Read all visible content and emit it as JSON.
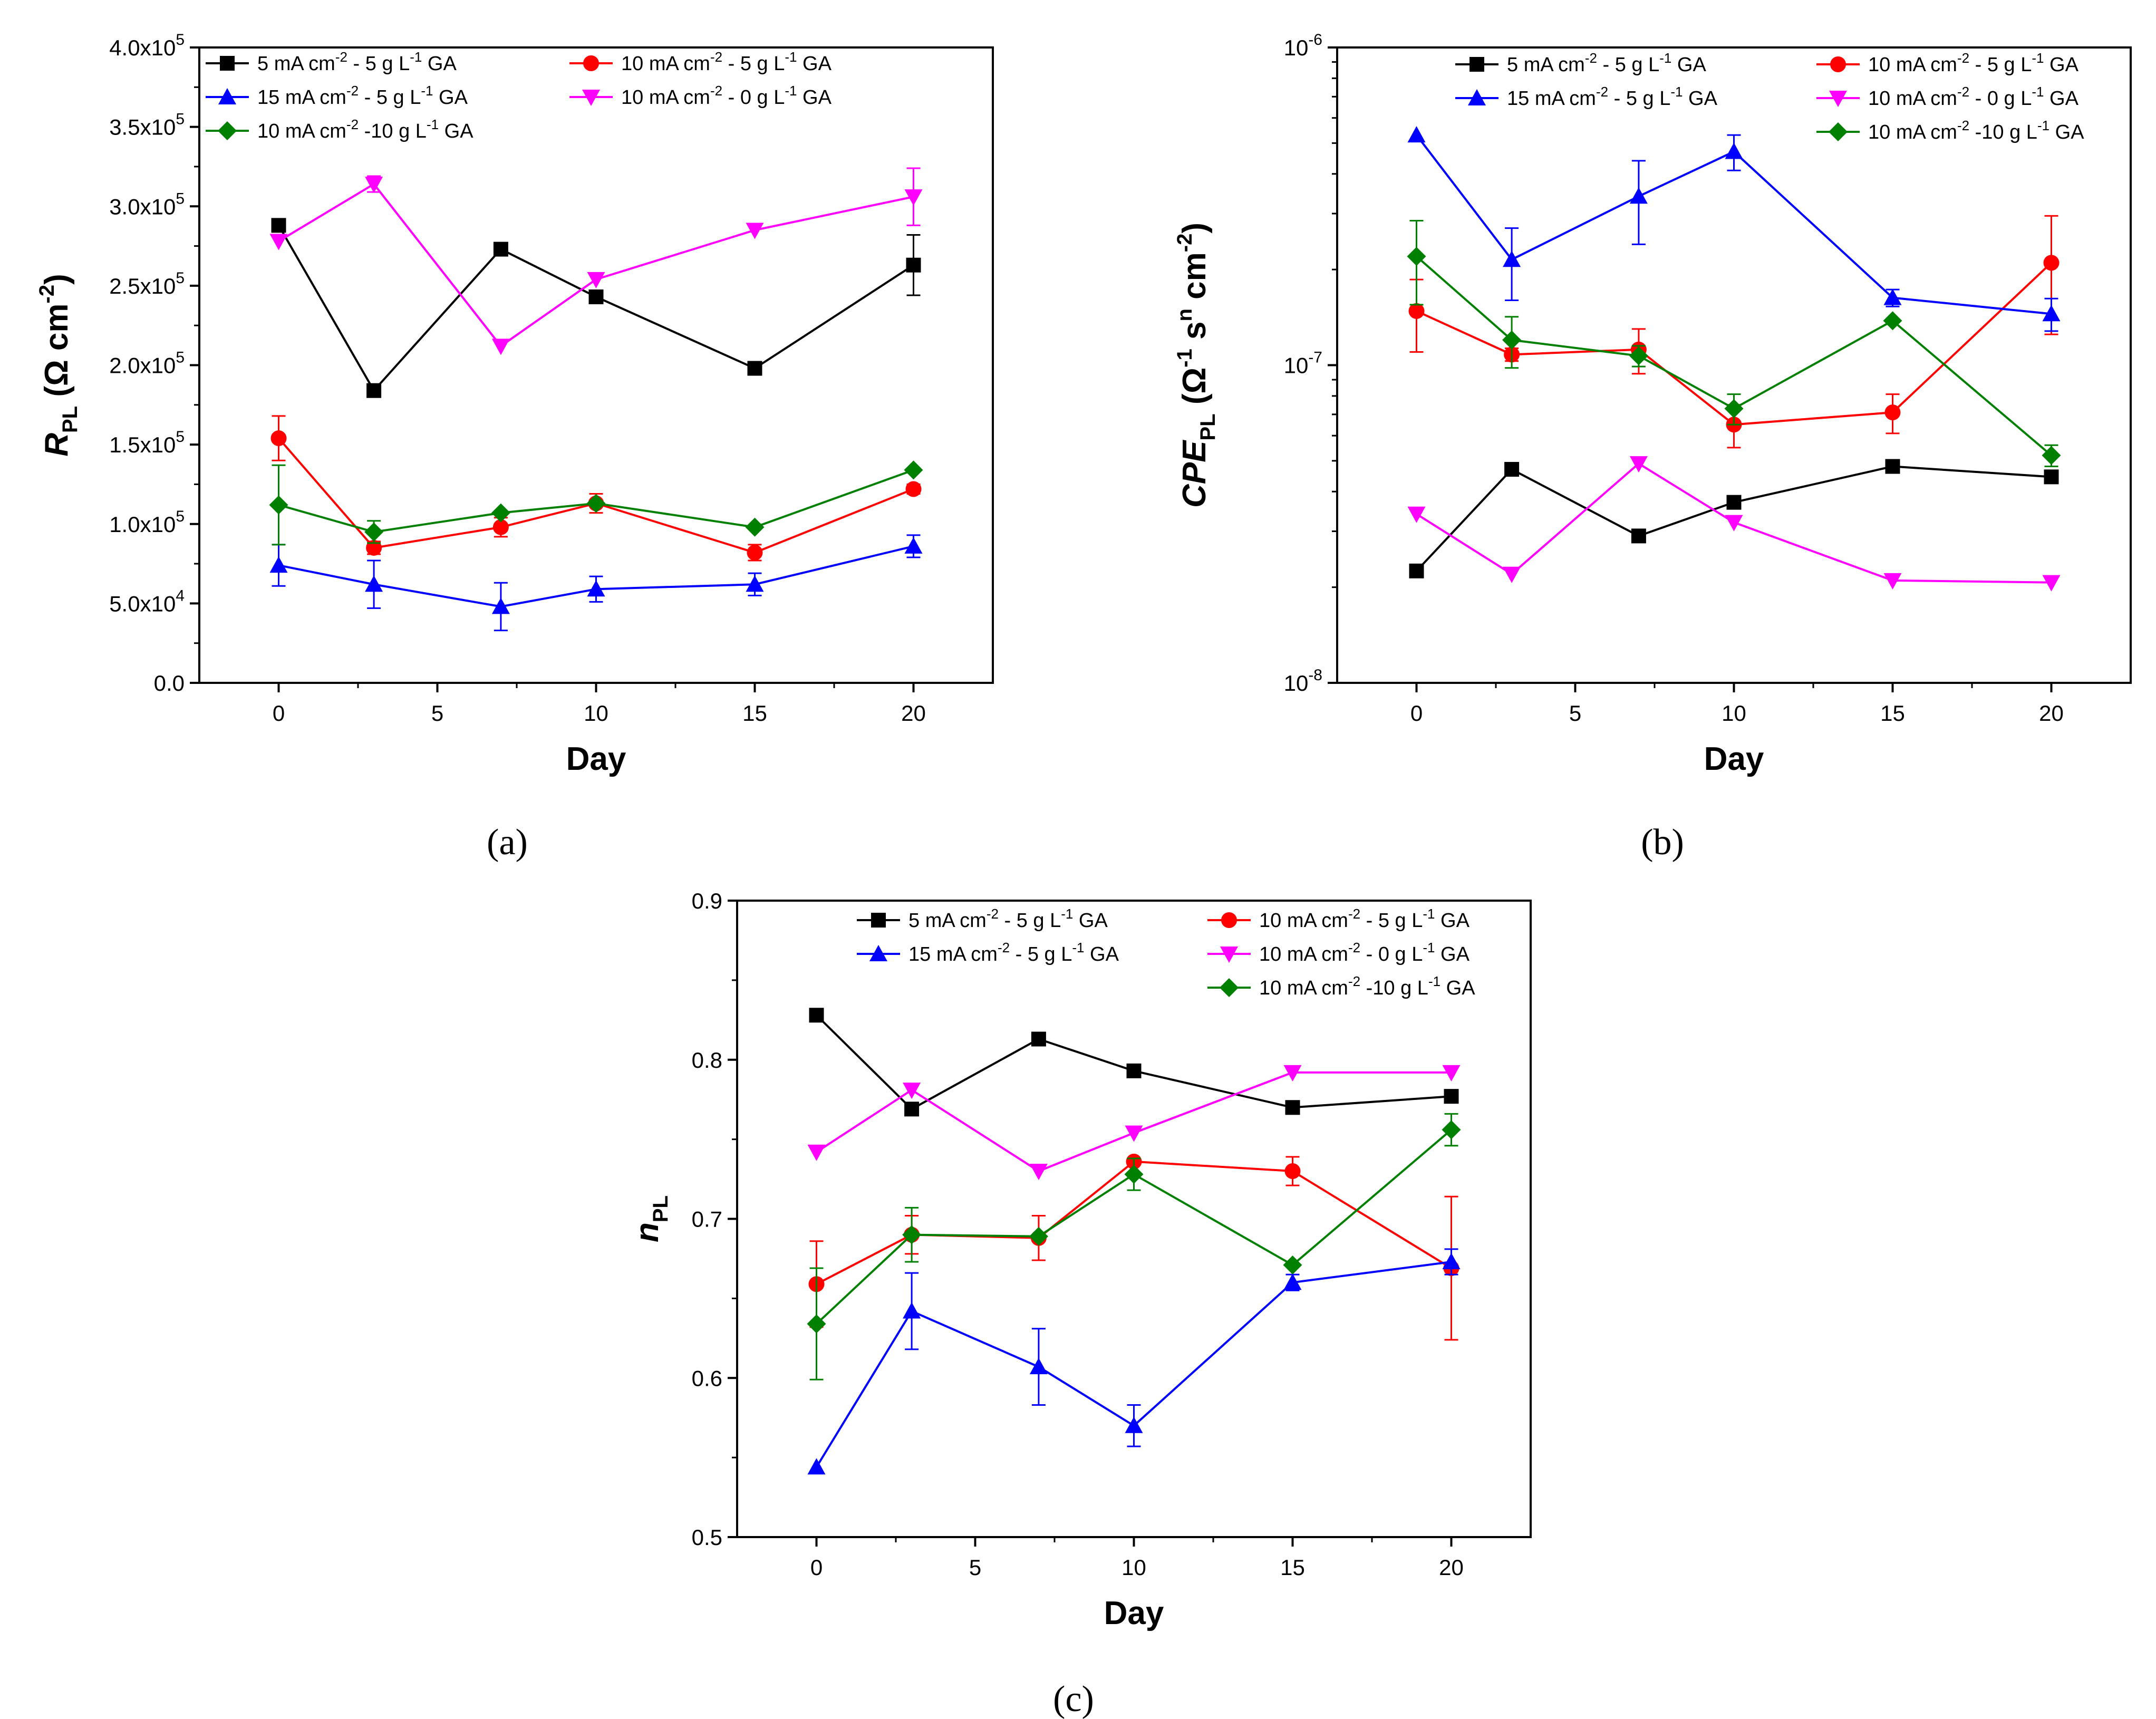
{
  "styles": {
    "series_colors": {
      "s5_5": "#000000",
      "s10_5": "#ff0000",
      "s15_5": "#0000ff",
      "s10_0": "#ff00ff",
      "s10_10": "#008000"
    },
    "series_markers": {
      "s5_5": "square",
      "s10_5": "circle",
      "s15_5": "triangle-up",
      "s10_0": "triangle-down",
      "s10_10": "diamond"
    }
  },
  "chart_data": [
    {
      "id": "a",
      "type": "line",
      "caption": "(a)",
      "xlabel": "Day",
      "ylabel_main": "R",
      "ylabel_sub": "PL",
      "ylabel_rest": " (Ω cm",
      "ylabel_sup": "-2",
      "ylabel_close": ")",
      "xlim": [
        -2.5,
        22.5
      ],
      "ylim": [
        0,
        400000
      ],
      "yscale": "linear",
      "x_ticks": [
        0,
        5,
        10,
        15,
        20
      ],
      "x_tick_labels": [
        "0",
        "5",
        "10",
        "15",
        "20"
      ],
      "y_ticks": [
        0,
        50000,
        100000,
        150000,
        200000,
        250000,
        300000,
        350000,
        400000
      ],
      "y_tick_labels": [
        {
          "base": "0.0",
          "exp": ""
        },
        {
          "base": "5.0x10",
          "exp": "4"
        },
        {
          "base": "1.0x10",
          "exp": "5"
        },
        {
          "base": "1.5x10",
          "exp": "5"
        },
        {
          "base": "2.0x10",
          "exp": "5"
        },
        {
          "base": "2.5x10",
          "exp": "5"
        },
        {
          "base": "3.0x10",
          "exp": "5"
        },
        {
          "base": "3.5x10",
          "exp": "5"
        },
        {
          "base": "4.0x10",
          "exp": "5"
        }
      ],
      "legend_order": [
        "s5_5",
        "s10_5",
        "s15_5",
        "s10_0",
        "s10_10"
      ],
      "legend_position": "top",
      "series": [
        {
          "key": "s5_5",
          "name": "5  mA cm-2 - 5 g L-1 GA",
          "label_parts": [
            [
              "5  mA cm",
              ""
            ],
            [
              "-2",
              "sup"
            ],
            [
              " -  5 g L",
              ""
            ],
            [
              "-1",
              "sup"
            ],
            [
              " GA",
              ""
            ]
          ],
          "x": [
            0,
            3,
            7,
            10,
            15,
            20
          ],
          "y": [
            288000,
            184000,
            273000,
            243000,
            198000,
            263000
          ],
          "err": [
            0,
            0,
            0,
            0,
            0,
            19000
          ]
        },
        {
          "key": "s10_5",
          "name": "10 mA cm-2 - 5 g L-1 GA",
          "label_parts": [
            [
              "10 mA cm",
              ""
            ],
            [
              "-2",
              "sup"
            ],
            [
              " -  5 g L",
              ""
            ],
            [
              "-1",
              "sup"
            ],
            [
              " GA",
              ""
            ]
          ],
          "x": [
            0,
            3,
            7,
            10,
            15,
            20
          ],
          "y": [
            154000,
            85000,
            98000,
            113000,
            82000,
            122000
          ],
          "err": [
            14000,
            4000,
            6000,
            6000,
            5000,
            3000
          ]
        },
        {
          "key": "s15_5",
          "name": "15 mA cm-2 - 5 g L-1 GA",
          "label_parts": [
            [
              "15 mA cm",
              ""
            ],
            [
              "-2",
              "sup"
            ],
            [
              " -  5 g L",
              ""
            ],
            [
              "-1",
              "sup"
            ],
            [
              " GA",
              ""
            ]
          ],
          "x": [
            0,
            3,
            7,
            10,
            15,
            20
          ],
          "y": [
            74000,
            62000,
            48000,
            59000,
            62000,
            86000
          ],
          "err": [
            13000,
            15000,
            15000,
            8000,
            7000,
            7000
          ]
        },
        {
          "key": "s10_0",
          "name": "10 mA cm-2 - 0 g L-1 GA",
          "label_parts": [
            [
              "10 mA cm",
              ""
            ],
            [
              "-2",
              "sup"
            ],
            [
              " - 0 g L",
              ""
            ],
            [
              "-1",
              "sup"
            ],
            [
              " GA",
              ""
            ]
          ],
          "x": [
            0,
            3,
            7,
            10,
            15,
            20
          ],
          "y": [
            278000,
            314000,
            212000,
            254000,
            285000,
            306000
          ],
          "err": [
            0,
            5000,
            0,
            0,
            0,
            18000
          ]
        },
        {
          "key": "s10_10",
          "name": "10 mA cm-2 -10 g L-1 GA",
          "label_parts": [
            [
              "10 mA cm",
              ""
            ],
            [
              "-2",
              "sup"
            ],
            [
              " -10 g L",
              ""
            ],
            [
              "-1",
              "sup"
            ],
            [
              " GA",
              ""
            ]
          ],
          "x": [
            0,
            3,
            7,
            10,
            15,
            20
          ],
          "y": [
            112000,
            95000,
            107000,
            113000,
            98000,
            134000
          ],
          "err": [
            25000,
            7000,
            0,
            0,
            0,
            0
          ]
        }
      ]
    },
    {
      "id": "b",
      "type": "line",
      "caption": "(b)",
      "xlabel": "Day",
      "ylabel_main": "CPE",
      "ylabel_sub": "PL",
      "ylabel_rest": "  (Ω",
      "ylabel_sup": "-1",
      "ylabel_mid": " s",
      "ylabel_sup2": "n",
      "ylabel_rest2": " cm",
      "ylabel_sup3": "-2",
      "ylabel_close": ")",
      "xlim": [
        -2.5,
        22.5
      ],
      "ylim": [
        1e-08,
        1e-06
      ],
      "yscale": "log",
      "x_ticks": [
        0,
        5,
        10,
        15,
        20
      ],
      "x_tick_labels": [
        "0",
        "5",
        "10",
        "15",
        "20"
      ],
      "y_ticks": [
        1e-08,
        1e-07,
        1e-06
      ],
      "y_tick_labels": [
        {
          "base": "10",
          "exp": "-8"
        },
        {
          "base": "10",
          "exp": "-7"
        },
        {
          "base": "10",
          "exp": "-6"
        }
      ],
      "legend_order": [
        "s5_5",
        "s10_5",
        "s15_5",
        "s10_0",
        "s10_10"
      ],
      "legend_position": "top",
      "series": [
        {
          "key": "s5_5",
          "name": "5  mA cm-2 - 5 g L-1 GA",
          "label_parts": [
            [
              "5  mA cm",
              ""
            ],
            [
              "-2",
              "sup"
            ],
            [
              " -  5 g L",
              ""
            ],
            [
              "-1",
              "sup"
            ],
            [
              " GA",
              ""
            ]
          ],
          "x": [
            0,
            3,
            7,
            10,
            15,
            20
          ],
          "y": [
            2.25e-08,
            4.7e-08,
            2.9e-08,
            3.7e-08,
            4.8e-08,
            4.45e-08
          ],
          "err": [
            0,
            0,
            0,
            0,
            0,
            0
          ]
        },
        {
          "key": "s10_5",
          "name": "10 mA cm-2 - 5 g L-1 GA",
          "label_parts": [
            [
              "10 mA cm",
              ""
            ],
            [
              "-2",
              "sup"
            ],
            [
              " -  5 g L",
              ""
            ],
            [
              "-1",
              "sup"
            ],
            [
              " GA",
              ""
            ]
          ],
          "x": [
            0,
            3,
            7,
            10,
            15,
            20
          ],
          "y": [
            1.48e-07,
            1.08e-07,
            1.12e-07,
            6.5e-08,
            7.1e-08,
            2.1e-07
          ],
          "err": [
            3.8e-08,
            5e-09,
            1.8e-08,
            1e-08,
            1e-08,
            8.5e-08
          ]
        },
        {
          "key": "s15_5",
          "name": "15 mA cm-2 - 5 g L-1 GA",
          "label_parts": [
            [
              "15 mA cm",
              ""
            ],
            [
              "-2",
              "sup"
            ],
            [
              " -  5 g L",
              ""
            ],
            [
              "-1",
              "sup"
            ],
            [
              " GA",
              ""
            ]
          ],
          "x": [
            0,
            3,
            7,
            10,
            15,
            20
          ],
          "y": [
            5.3e-07,
            2.15e-07,
            3.4e-07,
            4.7e-07,
            1.63e-07,
            1.45e-07
          ],
          "err": [
            0,
            5.5e-08,
            1e-07,
            6e-08,
            1e-08,
            1.7e-08
          ]
        },
        {
          "key": "s10_0",
          "name": "10 mA cm-2 - 0 g L-1 GA",
          "label_parts": [
            [
              "10 mA cm",
              ""
            ],
            [
              "-2",
              "sup"
            ],
            [
              " - 0 g L",
              ""
            ],
            [
              "-1",
              "sup"
            ],
            [
              " GA",
              ""
            ]
          ],
          "x": [
            0,
            3,
            7,
            10,
            15,
            20
          ],
          "y": [
            3.4e-08,
            2.2e-08,
            4.9e-08,
            3.2e-08,
            2.1e-08,
            2.07e-08
          ],
          "err": [
            0,
            0,
            0,
            0,
            0,
            0
          ]
        },
        {
          "key": "s10_10",
          "name": "10 mA cm-2 -10 g L-1 GA",
          "label_parts": [
            [
              "10 mA cm",
              ""
            ],
            [
              "-2",
              "sup"
            ],
            [
              " -10 g L",
              ""
            ],
            [
              "-1",
              "sup"
            ],
            [
              " GA",
              ""
            ]
          ],
          "x": [
            0,
            3,
            7,
            10,
            15,
            20
          ],
          "y": [
            2.2e-07,
            1.2e-07,
            1.07e-07,
            7.3e-08,
            1.38e-07,
            5.2e-08
          ],
          "err": [
            6.5e-08,
            2.2e-08,
            8e-09,
            8e-09,
            0,
            4e-09
          ]
        }
      ]
    },
    {
      "id": "c",
      "type": "line",
      "caption": "(c)",
      "xlabel": "Day",
      "ylabel_main": "n",
      "ylabel_sub": "PL",
      "xlim": [
        -2.5,
        22.5
      ],
      "ylim": [
        0.5,
        0.9
      ],
      "yscale": "linear",
      "x_ticks": [
        0,
        5,
        10,
        15,
        20
      ],
      "x_tick_labels": [
        "0",
        "5",
        "10",
        "15",
        "20"
      ],
      "y_ticks": [
        0.5,
        0.6,
        0.7,
        0.8,
        0.9
      ],
      "y_tick_labels": [
        {
          "base": "0.5",
          "exp": ""
        },
        {
          "base": "0.6",
          "exp": ""
        },
        {
          "base": "0.7",
          "exp": ""
        },
        {
          "base": "0.8",
          "exp": ""
        },
        {
          "base": "0.9",
          "exp": ""
        }
      ],
      "legend_order": [
        "s5_5",
        "s10_5",
        "s15_5",
        "s10_0",
        "s10_10"
      ],
      "legend_position": "top-right",
      "series": [
        {
          "key": "s5_5",
          "name": "5  mA cm-2 - 5 g L-1 GA",
          "label_parts": [
            [
              "5  mA cm",
              ""
            ],
            [
              "-2",
              "sup"
            ],
            [
              " -  5 g L",
              ""
            ],
            [
              "-1",
              "sup"
            ],
            [
              " GA",
              ""
            ]
          ],
          "x": [
            0,
            3,
            7,
            10,
            15,
            20
          ],
          "y": [
            0.828,
            0.769,
            0.813,
            0.793,
            0.77,
            0.777
          ],
          "err": [
            0,
            0,
            0,
            0,
            0,
            0
          ]
        },
        {
          "key": "s10_5",
          "name": "10 mA cm-2 - 5 g L-1 GA",
          "label_parts": [
            [
              "10 mA cm",
              ""
            ],
            [
              "-2",
              "sup"
            ],
            [
              " -  5 g L",
              ""
            ],
            [
              "-1",
              "sup"
            ],
            [
              " GA",
              ""
            ]
          ],
          "x": [
            0,
            3,
            7,
            10,
            15,
            20
          ],
          "y": [
            0.659,
            0.69,
            0.688,
            0.736,
            0.73,
            0.669
          ],
          "err": [
            0.027,
            0.012,
            0.014,
            0,
            0.009,
            0.045
          ]
        },
        {
          "key": "s15_5",
          "name": "15 mA cm-2 - 5 g L-1 GA",
          "label_parts": [
            [
              "15 mA cm",
              ""
            ],
            [
              "-2",
              "sup"
            ],
            [
              " -  5 g L",
              ""
            ],
            [
              "-1",
              "sup"
            ],
            [
              " GA",
              ""
            ]
          ],
          "x": [
            0,
            3,
            7,
            10,
            15,
            20
          ],
          "y": [
            0.544,
            0.642,
            0.607,
            0.57,
            0.66,
            0.673
          ],
          "err": [
            0,
            0.024,
            0.024,
            0.013,
            0.005,
            0.008
          ]
        },
        {
          "key": "s10_0",
          "name": "10 mA cm-2 - 0 g L-1 GA",
          "label_parts": [
            [
              "10 mA cm",
              ""
            ],
            [
              "-2",
              "sup"
            ],
            [
              " - 0 g L",
              ""
            ],
            [
              "-1",
              "sup"
            ],
            [
              " GA",
              ""
            ]
          ],
          "x": [
            0,
            3,
            7,
            10,
            15,
            20
          ],
          "y": [
            0.742,
            0.781,
            0.73,
            0.754,
            0.792,
            0.792
          ],
          "err": [
            0,
            0,
            0,
            0,
            0,
            0
          ]
        },
        {
          "key": "s10_10",
          "name": "10 mA cm-2 -10 g L-1 GA",
          "label_parts": [
            [
              "10 mA cm",
              ""
            ],
            [
              "-2",
              "sup"
            ],
            [
              " -10 g L",
              ""
            ],
            [
              "-1",
              "sup"
            ],
            [
              " GA",
              ""
            ]
          ],
          "x": [
            0,
            3,
            7,
            10,
            15,
            20
          ],
          "y": [
            0.634,
            0.69,
            0.689,
            0.728,
            0.671,
            0.756
          ],
          "err": [
            0.035,
            0.017,
            0,
            0.01,
            0,
            0.01
          ]
        }
      ]
    }
  ]
}
